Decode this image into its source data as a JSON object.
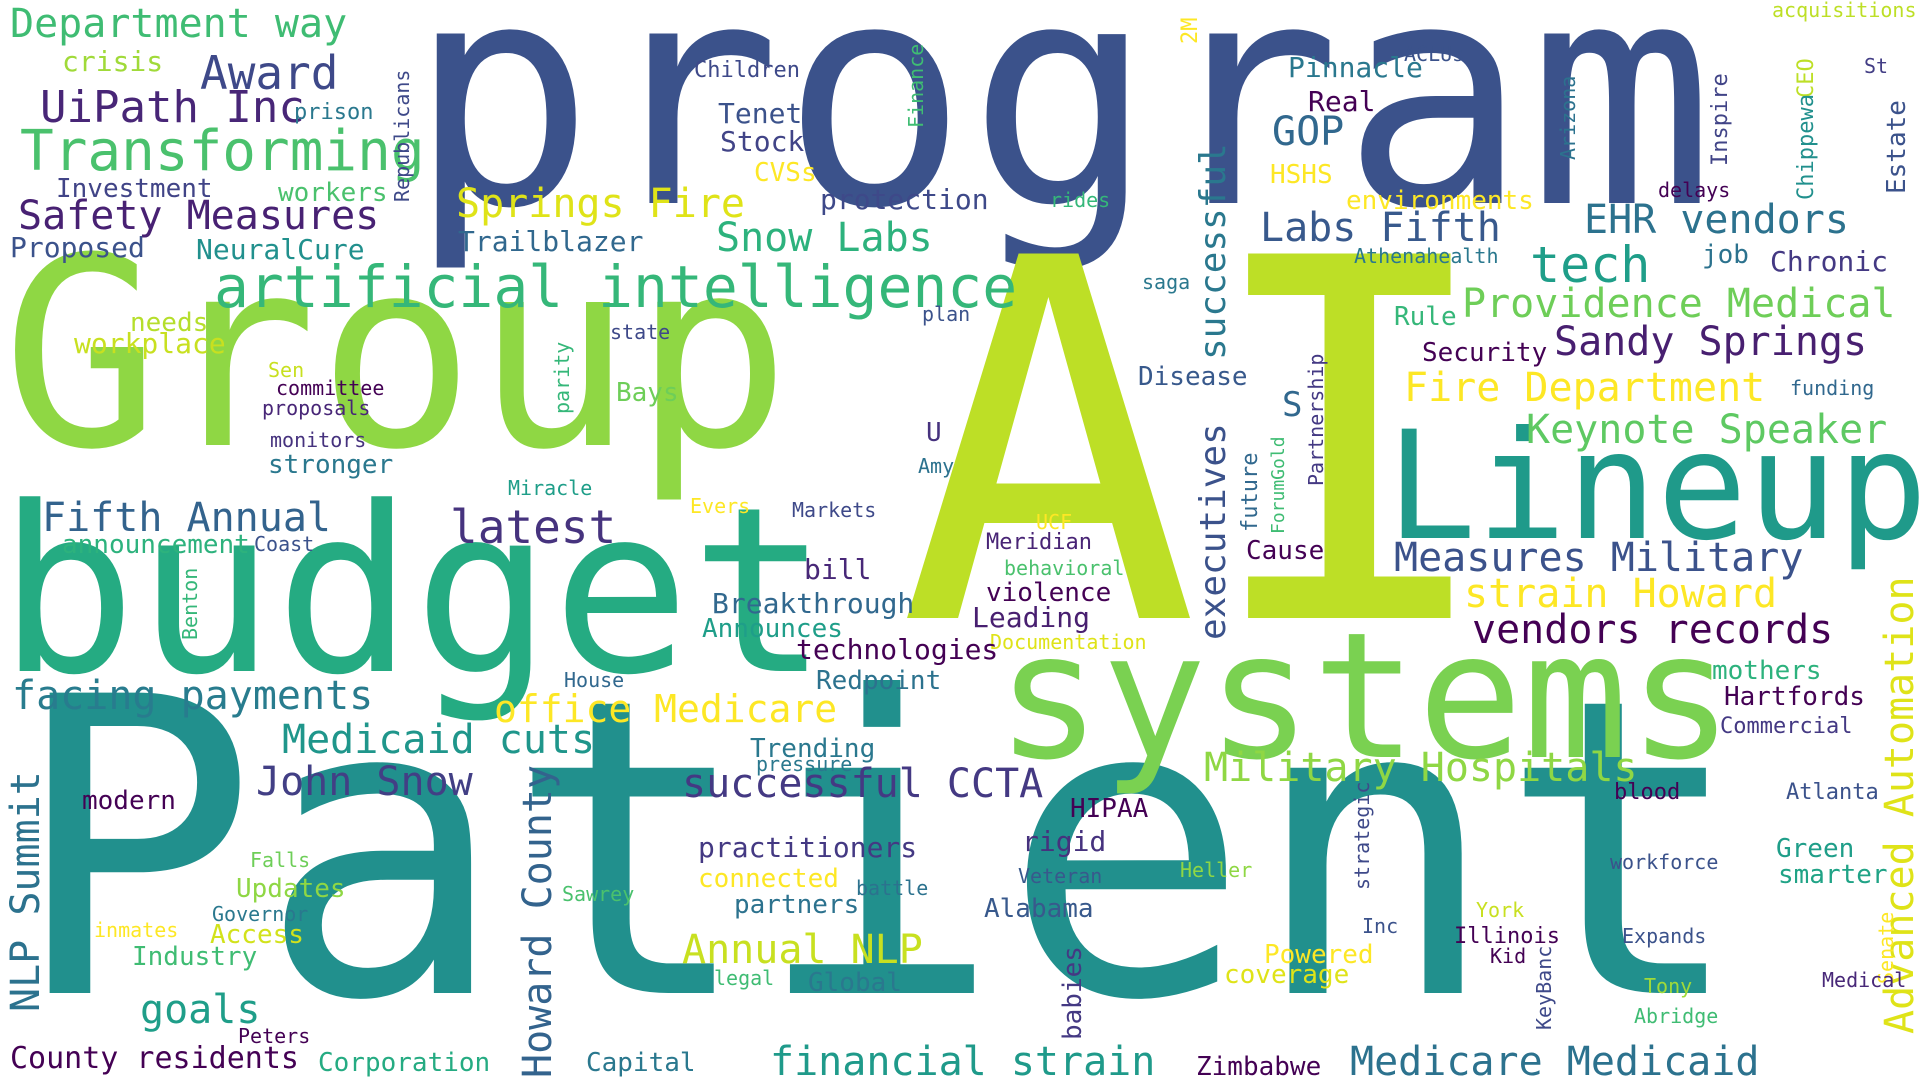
{
  "words": [
    {
      "text": "program",
      "color": "#3b528b"
    },
    {
      "text": "AI",
      "color": "#bddf26"
    },
    {
      "text": "Group",
      "color": "#8fd744"
    },
    {
      "text": "Patient",
      "color": "#21908d"
    },
    {
      "text": "budget",
      "color": "#25ab82"
    },
    {
      "text": "systems",
      "color": "#7ad151"
    },
    {
      "text": "Lineup",
      "color": "#1f9a8a"
    },
    {
      "text": "artificial intelligence",
      "color": "#35b779"
    },
    {
      "text": "Department way",
      "color": "#3fbc73"
    },
    {
      "text": "Award",
      "color": "#3e4989"
    },
    {
      "text": "UiPath Inc",
      "color": "#482677"
    },
    {
      "text": "Transforming",
      "color": "#4ac16d"
    },
    {
      "text": "Safety Measures",
      "color": "#482173"
    },
    {
      "text": "Investment",
      "color": "#414487"
    },
    {
      "text": "Proposed",
      "color": "#3b528b"
    },
    {
      "text": "crisis",
      "color": "#a0da39"
    },
    {
      "text": "prison",
      "color": "#2a788e"
    },
    {
      "text": "workers",
      "color": "#4ac16d"
    },
    {
      "text": "NeuralCure",
      "color": "#21908d"
    },
    {
      "text": "Children",
      "color": "#3e4989"
    },
    {
      "text": "Tenet",
      "color": "#3b528b"
    },
    {
      "text": "Stock",
      "color": "#414487"
    },
    {
      "text": "CVSs",
      "color": "#fde725"
    },
    {
      "text": "protection",
      "color": "#3e4989"
    },
    {
      "text": "Springs Fire",
      "color": "#dfe318"
    },
    {
      "text": "Trailblazer",
      "color": "#31688e"
    },
    {
      "text": "Snow Labs",
      "color": "#2db27d"
    },
    {
      "text": "Finance",
      "color": "#3fbc73"
    },
    {
      "text": "2M",
      "color": "#fde725"
    },
    {
      "text": "Republicans",
      "color": "#3e4989"
    },
    {
      "text": "Pinnacle",
      "color": "#2a788e"
    },
    {
      "text": "ACLUs",
      "color": "#3b528b"
    },
    {
      "text": "Real",
      "color": "#440154"
    },
    {
      "text": "GOP",
      "color": "#31688e"
    },
    {
      "text": "HSHS",
      "color": "#fde725"
    },
    {
      "text": "rides",
      "color": "#35b779"
    },
    {
      "text": "environments",
      "color": "#fde725"
    },
    {
      "text": "Labs Fifth",
      "color": "#38598c"
    },
    {
      "text": "EHR vendors",
      "color": "#2c728e"
    },
    {
      "text": "Athenahealth",
      "color": "#2a788e"
    },
    {
      "text": "tech",
      "color": "#1f9e89"
    },
    {
      "text": "job",
      "color": "#2c728e"
    },
    {
      "text": "Chronic",
      "color": "#443983"
    },
    {
      "text": "acquisitions",
      "color": "#bddf26"
    },
    {
      "text": "St",
      "color": "#433e85"
    },
    {
      "text": "CEO",
      "color": "#bddf26"
    },
    {
      "text": "Arizona",
      "color": "#2c728e"
    },
    {
      "text": "Inspire",
      "color": "#414487"
    },
    {
      "text": "Chippewa",
      "color": "#21908d"
    },
    {
      "text": "Estate",
      "color": "#3b528b"
    },
    {
      "text": "delays",
      "color": "#440154"
    },
    {
      "text": "successful",
      "color": "#2a788e"
    },
    {
      "text": "Providence Medical",
      "color": "#6ece58"
    },
    {
      "text": "Sandy Springs",
      "color": "#481f70"
    },
    {
      "text": "Rule",
      "color": "#35b779"
    },
    {
      "text": "Security",
      "color": "#440154"
    },
    {
      "text": "Fire Department",
      "color": "#fde725"
    },
    {
      "text": "funding",
      "color": "#31688e"
    },
    {
      "text": "Keynote Speaker",
      "color": "#5ec962"
    },
    {
      "text": "saga",
      "color": "#2a788e"
    },
    {
      "text": "plan",
      "color": "#3b528b"
    },
    {
      "text": "state",
      "color": "#3e4989"
    },
    {
      "text": "needs",
      "color": "#b5de2b"
    },
    {
      "text": "workplace",
      "color": "#c8e020"
    },
    {
      "text": "Sen",
      "color": "#c8e020"
    },
    {
      "text": "committee",
      "color": "#440154"
    },
    {
      "text": "proposals",
      "color": "#482677"
    },
    {
      "text": "monitors",
      "color": "#46327e"
    },
    {
      "text": "stronger",
      "color": "#2a788e"
    },
    {
      "text": "parity",
      "color": "#35b779"
    },
    {
      "text": "Bays",
      "color": "#6ece58"
    },
    {
      "text": "Disease",
      "color": "#38598c"
    },
    {
      "text": "S",
      "color": "#31688e"
    },
    {
      "text": "executives",
      "color": "#3b528b"
    },
    {
      "text": "Partnership",
      "color": "#443983"
    },
    {
      "text": "ForumGold",
      "color": "#3fbc73"
    },
    {
      "text": "future",
      "color": "#31688e"
    },
    {
      "text": "U",
      "color": "#46327e"
    },
    {
      "text": "Amy",
      "color": "#2c728e"
    },
    {
      "text": "Miracle",
      "color": "#1f9e89"
    },
    {
      "text": "Evers",
      "color": "#fde725"
    },
    {
      "text": "Markets",
      "color": "#3e4989"
    },
    {
      "text": "Fifth Annual",
      "color": "#33638d"
    },
    {
      "text": "announcement",
      "color": "#2db27d"
    },
    {
      "text": "Coast",
      "color": "#3b528b"
    },
    {
      "text": "latest",
      "color": "#46337e"
    },
    {
      "text": "UCF",
      "color": "#fde725"
    },
    {
      "text": "Meridian",
      "color": "#482475"
    },
    {
      "text": "behavioral",
      "color": "#4ac16d"
    },
    {
      "text": "Cause",
      "color": "#440154"
    },
    {
      "text": "Measures Military",
      "color": "#3b528b"
    },
    {
      "text": "bill",
      "color": "#482878"
    },
    {
      "text": "violence",
      "color": "#440154"
    },
    {
      "text": "Breakthrough",
      "color": "#31688e"
    },
    {
      "text": "Announces",
      "color": "#1f9e89"
    },
    {
      "text": "Leading",
      "color": "#481f70"
    },
    {
      "text": "Documentation",
      "color": "#dfe318"
    },
    {
      "text": "technologies",
      "color": "#440154"
    },
    {
      "text": "strain Howard",
      "color": "#fde725"
    },
    {
      "text": "vendors records",
      "color": "#440154"
    },
    {
      "text": "Benton",
      "color": "#35b779"
    },
    {
      "text": "House",
      "color": "#31688e"
    },
    {
      "text": "Redpoint",
      "color": "#2c728e"
    },
    {
      "text": "facing payments",
      "color": "#287c8e"
    },
    {
      "text": "office Medicare",
      "color": "#fde725"
    },
    {
      "text": "mothers",
      "color": "#2db27d"
    },
    {
      "text": "Hartfords",
      "color": "#440154"
    },
    {
      "text": "Commercial",
      "color": "#443983"
    },
    {
      "text": "Advanced Automation",
      "color": "#dfe318"
    },
    {
      "text": "Medicaid cuts",
      "color": "#1f968b"
    },
    {
      "text": "Trending",
      "color": "#2a788e"
    },
    {
      "text": "pressure",
      "color": "#2a788e"
    },
    {
      "text": "successful CCTA",
      "color": "#443983"
    },
    {
      "text": "Military Hospitals",
      "color": "#8fd744"
    },
    {
      "text": "John Snow",
      "color": "#423f85"
    },
    {
      "text": "NLP Summit",
      "color": "#2c728e"
    },
    {
      "text": "Howard County",
      "color": "#33638d"
    },
    {
      "text": "modern",
      "color": "#440154"
    },
    {
      "text": "HIPAA",
      "color": "#440154"
    },
    {
      "text": "rigid",
      "color": "#46327e"
    },
    {
      "text": "practitioners",
      "color": "#443983"
    },
    {
      "text": "strategic",
      "color": "#3e4989"
    },
    {
      "text": "blood",
      "color": "#440154"
    },
    {
      "text": "Atlanta",
      "color": "#3b528b"
    },
    {
      "text": "Falls",
      "color": "#6ece58"
    },
    {
      "text": "Updates",
      "color": "#8fd744"
    },
    {
      "text": "Governor",
      "color": "#2a788e"
    },
    {
      "text": "inmates",
      "color": "#fde725"
    },
    {
      "text": "Access",
      "color": "#d2e21b"
    },
    {
      "text": "Industry",
      "color": "#3fbc73"
    },
    {
      "text": "Sawrey",
      "color": "#4ac16d"
    },
    {
      "text": "connected",
      "color": "#fde725"
    },
    {
      "text": "battle",
      "color": "#2c728e"
    },
    {
      "text": "partners",
      "color": "#2c728e"
    },
    {
      "text": "Veteran",
      "color": "#38598c"
    },
    {
      "text": "Alabama",
      "color": "#38598c"
    },
    {
      "text": "Heller",
      "color": "#8fd744"
    },
    {
      "text": "workforce",
      "color": "#3b528b"
    },
    {
      "text": "Green",
      "color": "#1f9e89"
    },
    {
      "text": "smarter",
      "color": "#20a386"
    },
    {
      "text": "Senate",
      "color": "#fde725"
    },
    {
      "text": "Annual NLP",
      "color": "#c8e020"
    },
    {
      "text": "Global",
      "color": "#2a788e"
    },
    {
      "text": "legal",
      "color": "#3fbc73"
    },
    {
      "text": "babies",
      "color": "#443983"
    },
    {
      "text": "Inc",
      "color": "#3b528b"
    },
    {
      "text": "York",
      "color": "#c8e020"
    },
    {
      "text": "Illinois",
      "color": "#440154"
    },
    {
      "text": "Kid",
      "color": "#440154"
    },
    {
      "text": "KeyBanc",
      "color": "#3e4989"
    },
    {
      "text": "Powered",
      "color": "#fde725"
    },
    {
      "text": "coverage",
      "color": "#dfe318"
    },
    {
      "text": "Expands",
      "color": "#3b528b"
    },
    {
      "text": "Tony",
      "color": "#a0da39"
    },
    {
      "text": "Abridge",
      "color": "#3fbc73"
    },
    {
      "text": "Medical",
      "color": "#482878"
    },
    {
      "text": "goals",
      "color": "#1f9e89"
    },
    {
      "text": "Peters",
      "color": "#440154"
    },
    {
      "text": "County residents",
      "color": "#440154"
    },
    {
      "text": "Corporation",
      "color": "#25ab82"
    },
    {
      "text": "Capital",
      "color": "#2a788e"
    },
    {
      "text": "financial strain",
      "color": "#1f9a8a"
    },
    {
      "text": "Zimbabwe",
      "color": "#440154"
    },
    {
      "text": "Medicare Medicaid",
      "color": "#2c728e"
    }
  ]
}
